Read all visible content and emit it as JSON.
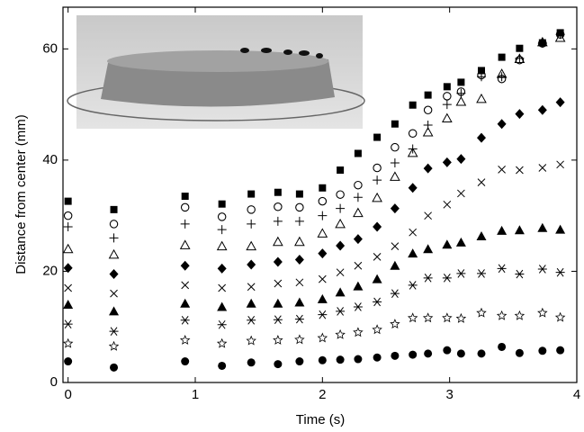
{
  "chart_data": {
    "type": "scatter",
    "xlabel": "Time (s)",
    "ylabel": "Distance from center (mm)",
    "x": [
      0,
      0.36,
      0.92,
      1.21,
      1.44,
      1.65,
      1.82,
      2.0,
      2.14,
      2.28,
      2.43,
      2.57,
      2.71,
      2.83,
      2.98,
      3.09,
      3.25,
      3.41,
      3.55,
      3.73,
      3.87
    ],
    "xlim": [
      -0.04,
      4
    ],
    "xticks": [
      0,
      1,
      2,
      3,
      4
    ],
    "ylim": [
      0,
      67.5
    ],
    "yticks": [
      0,
      20,
      40,
      60
    ],
    "series": [
      {
        "marker": "square-filled",
        "color": "#000000",
        "values": [
          32.6,
          31.1,
          33.5,
          32.1,
          33.9,
          34.2,
          33.9,
          35,
          38.2,
          41.2,
          44.1,
          46.5,
          49.9,
          51.7,
          53.2,
          54,
          56.1,
          58.5,
          60.1,
          61.1,
          62.9
        ]
      },
      {
        "marker": "circle-open",
        "color": "#000000",
        "values": [
          30,
          28.5,
          31.5,
          29.8,
          31.1,
          31.6,
          31.5,
          32.6,
          33.8,
          35.5,
          38.6,
          42.3,
          44.8,
          49,
          51.5,
          52.3,
          55.3,
          54.6,
          58,
          61,
          62.6
        ]
      },
      {
        "marker": "plus",
        "color": "#000000",
        "values": [
          28,
          26,
          28.5,
          27.5,
          28.5,
          29,
          29,
          30,
          31.3,
          33.3,
          36.4,
          39.5,
          42,
          46.3,
          50,
          52,
          55,
          55,
          58.3,
          61,
          62.6
        ]
      },
      {
        "marker": "triangle-open",
        "color": "#000000",
        "values": [
          24,
          23,
          24.7,
          24.5,
          24.5,
          25.3,
          25.3,
          26.8,
          28.5,
          30.5,
          33.2,
          37,
          41.3,
          45,
          47.5,
          50.5,
          51,
          55.5,
          58.2,
          61.2,
          62
        ]
      },
      {
        "marker": "diamond-filled",
        "color": "#000000",
        "values": [
          20.6,
          19.5,
          21,
          20.5,
          21.2,
          21.7,
          22.1,
          23.2,
          24.6,
          25.8,
          28,
          31.3,
          35,
          38.5,
          39.6,
          40.2,
          44,
          46.5,
          48.3,
          49,
          50.4
        ]
      },
      {
        "marker": "cross",
        "color": "#000000",
        "values": [
          17,
          16,
          17.5,
          17,
          17.2,
          17.8,
          18,
          18.6,
          19.8,
          21,
          22.6,
          24.5,
          27,
          30,
          32,
          34,
          36,
          38.3,
          38.2,
          38.6,
          39.2
        ]
      },
      {
        "marker": "triangle-filled",
        "color": "#000000",
        "values": [
          14,
          12.8,
          14.2,
          13.6,
          14.2,
          14.2,
          14.4,
          15,
          16.2,
          17.3,
          18.6,
          21,
          23.2,
          24,
          24.8,
          25.2,
          26.3,
          27.3,
          27.4,
          27.8,
          27.5
        ]
      },
      {
        "marker": "asterisk",
        "color": "#000000",
        "values": [
          10.5,
          9.2,
          11.2,
          10.4,
          11.2,
          11.3,
          11.4,
          12.2,
          12.8,
          13.6,
          14.5,
          16,
          17.5,
          18.8,
          18.8,
          19.6,
          19.6,
          20.5,
          19.5,
          20.4,
          19.8
        ]
      },
      {
        "marker": "star-open",
        "color": "#000000",
        "values": [
          7,
          6.5,
          7.6,
          7,
          7.5,
          7.6,
          7.7,
          8,
          8.6,
          9,
          9.5,
          10.5,
          11.6,
          11.6,
          11.6,
          11.5,
          12.5,
          12,
          12,
          12.5,
          11.7
        ]
      },
      {
        "marker": "circle-filled",
        "color": "#000000",
        "values": [
          3.8,
          2.7,
          3.8,
          3,
          3.6,
          3.3,
          3.8,
          4,
          4.1,
          4.2,
          4.5,
          4.8,
          5,
          5.2,
          5.8,
          5.2,
          5.2,
          6.4,
          5.3,
          5.7,
          5.8
        ]
      }
    ]
  }
}
